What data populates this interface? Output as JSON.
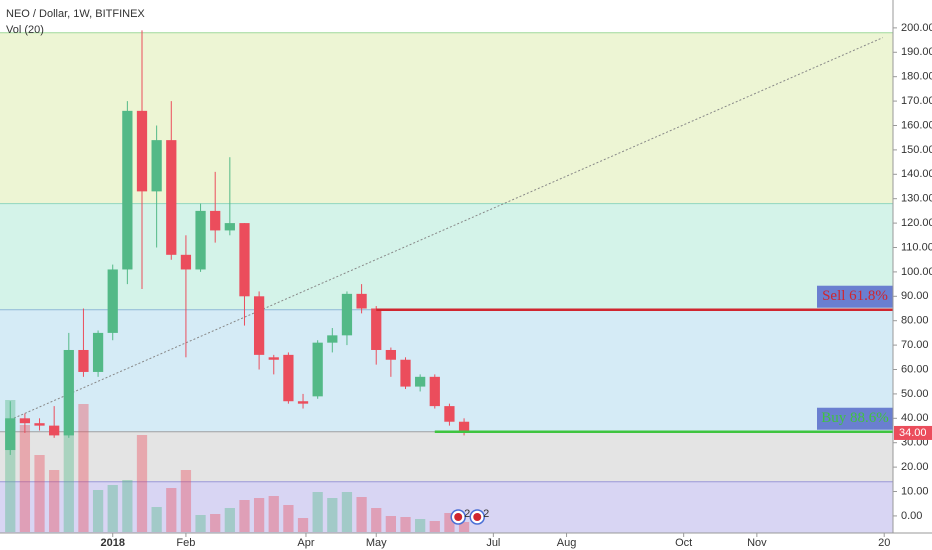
{
  "chart_data": {
    "type": "candlestick",
    "title": "NEO / Dollar, 1W, BITFINEX",
    "volume_label": "Vol (20)",
    "up_color": "#53b987",
    "down_color": "#eb4d5c",
    "x": [
      0,
      1,
      2,
      3,
      4,
      5,
      6,
      7,
      8,
      9,
      10,
      11,
      12,
      13,
      14,
      15,
      16,
      17,
      18,
      19,
      20,
      21,
      22,
      23,
      24,
      25,
      26,
      27,
      28,
      29,
      30,
      31
    ],
    "open": [
      27,
      40,
      38,
      37,
      33,
      68,
      59,
      75,
      101,
      166,
      133,
      154,
      107,
      101,
      125,
      117,
      120,
      90,
      65,
      66,
      47,
      49,
      71,
      74,
      91,
      85,
      68,
      64,
      53,
      57,
      45,
      38.6
    ],
    "high": [
      47,
      42,
      40,
      45,
      75,
      85,
      76,
      103,
      170,
      199,
      160,
      170,
      115,
      128,
      141,
      147,
      120,
      92,
      66,
      67,
      50,
      72,
      77,
      92,
      95,
      86,
      69,
      65,
      58,
      58,
      46,
      40
    ],
    "low": [
      25,
      34,
      35,
      32,
      32,
      57,
      57,
      72,
      95,
      93,
      110,
      105,
      65,
      100,
      112,
      115,
      78,
      60,
      58,
      46,
      44,
      48,
      67,
      70,
      83,
      62,
      57,
      52,
      51,
      44,
      37,
      33
    ],
    "close": [
      40,
      38,
      37,
      33,
      68,
      59,
      75,
      101,
      166,
      133,
      154,
      107,
      101,
      125,
      117,
      120,
      90,
      66,
      64,
      47,
      46,
      71,
      74,
      91,
      85,
      68,
      64,
      53,
      57,
      45,
      38.6,
      34
    ],
    "volume": [
      132,
      107,
      77,
      62,
      100,
      128,
      42,
      47,
      52,
      97,
      25,
      44,
      62,
      17,
      18,
      24,
      32,
      34,
      36,
      27,
      14,
      40,
      34,
      40,
      35,
      24,
      16,
      15,
      13,
      11,
      19,
      10
    ],
    "xlim": [
      -0.7,
      60.3
    ],
    "xticks": [
      {
        "value": 7,
        "label": "2018"
      },
      {
        "value": 12,
        "label": "Feb"
      },
      {
        "value": 20.2,
        "label": "Apr"
      },
      {
        "value": 25,
        "label": "May"
      },
      {
        "value": 33,
        "label": "Jul"
      },
      {
        "value": 38,
        "label": "Aug"
      },
      {
        "value": 46,
        "label": "Oct"
      },
      {
        "value": 51,
        "label": "Nov"
      },
      {
        "value": 59.7,
        "label": "20"
      }
    ],
    "ylim": [
      -7,
      202
    ],
    "yticks": [
      {
        "value": 0,
        "label": "0.00"
      },
      {
        "value": 10,
        "label": "10.00"
      },
      {
        "value": 20,
        "label": "20.00"
      },
      {
        "value": 30,
        "label": "30.00"
      },
      {
        "value": 40,
        "label": "40.00"
      },
      {
        "value": 50,
        "label": "50.00"
      },
      {
        "value": 60,
        "label": "60.00"
      },
      {
        "value": 70,
        "label": "70.00"
      },
      {
        "value": 80,
        "label": "80.00"
      },
      {
        "value": 90,
        "label": "90.00"
      },
      {
        "value": 100,
        "label": "100.00"
      },
      {
        "value": 110,
        "label": "110.00"
      },
      {
        "value": 120,
        "label": "120.00"
      },
      {
        "value": 130,
        "label": "130.00"
      },
      {
        "value": 140,
        "label": "140.00"
      },
      {
        "value": 150,
        "label": "150.00"
      },
      {
        "value": 160,
        "label": "160.00"
      },
      {
        "value": 170,
        "label": "170.00"
      },
      {
        "value": 180,
        "label": "180.00"
      },
      {
        "value": 190,
        "label": "190.00"
      },
      {
        "value": 200,
        "label": "200.00"
      }
    ],
    "zones": [
      {
        "from": 198,
        "to": 128,
        "color": "#edf5d4",
        "line": "#9fd89a"
      },
      {
        "from": 128,
        "to": 84.5,
        "color": "#d4f3e9",
        "line": "#8fd6c0"
      },
      {
        "from": 84.5,
        "to": 34.5,
        "color": "#d5ebf6",
        "line": "#8fb7d8"
      },
      {
        "from": 34.5,
        "to": 14,
        "color": "#e4e4e4",
        "line": "#a0a0a0"
      },
      {
        "from": 14,
        "to": -7,
        "color": "#d8d5f3",
        "line": "#9a96d8"
      }
    ],
    "trendline": {
      "x": [
        0,
        59.6
      ],
      "y": [
        39.4,
        196
      ]
    },
    "levels": [
      {
        "label": "Sell 61.8%",
        "value": 84.5,
        "start": 25,
        "color": "#d0262f",
        "text_color": "#d0262f",
        "box": "#6a7fd0"
      },
      {
        "label": "Buy 88.6%",
        "value": 34.5,
        "start": 29,
        "color": "#3fc43f",
        "text_color": "#3fc43f",
        "box": "#6a7fd0"
      }
    ],
    "last_price": {
      "value": 34,
      "label": "34.00"
    },
    "events": [
      "2",
      "2"
    ]
  }
}
